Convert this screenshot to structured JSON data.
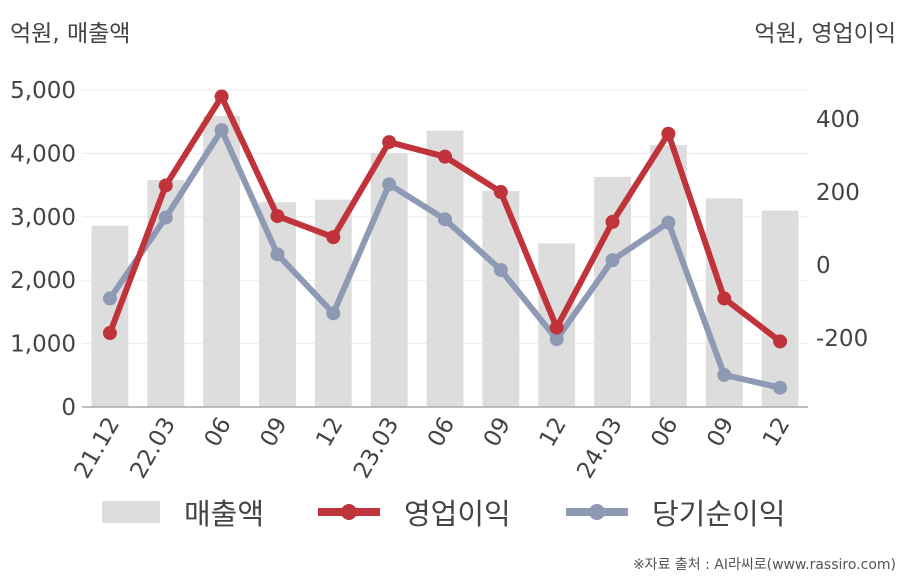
{
  "units": {
    "left": "억원, 매출액",
    "right": "억원, 영업이익"
  },
  "source": "※자료 출처 : AI라씨로(www.rassiro.com)",
  "colors": {
    "bar": "#dddddd",
    "operating": "#c0333a",
    "net": "#8e9ab4"
  },
  "chart_data": {
    "type": "bar",
    "categories": [
      "21.12",
      "22.03",
      "06",
      "09",
      "12",
      "23.03",
      "06",
      "09",
      "12",
      "24.03",
      "06",
      "09",
      "12"
    ],
    "y_left": {
      "ticks": [
        "0",
        "1,000",
        "2,000",
        "3,000",
        "4,000",
        "5,000"
      ],
      "ylim": [
        0,
        5000
      ]
    },
    "y_right": {
      "ticks": [
        "-200",
        "0",
        "200",
        "400"
      ],
      "ylim": [
        -390,
        480
      ]
    },
    "grid": true,
    "legend_position": "bottom",
    "series": [
      {
        "name": "매출액",
        "type": "bar",
        "axis": "left",
        "values": [
          2860,
          3580,
          4590,
          3230,
          3270,
          4000,
          4360,
          3410,
          2580,
          3630,
          4130,
          3290,
          3100
        ]
      },
      {
        "name": "영업이익",
        "type": "line",
        "axis": "right",
        "values": [
          -187,
          218,
          462,
          134,
          76,
          337,
          297,
          200,
          -172,
          118,
          360,
          -92,
          -210
        ]
      },
      {
        "name": "당기순이익",
        "type": "line",
        "axis": "right",
        "values": [
          -92,
          130,
          370,
          29,
          -133,
          221,
          125,
          -14,
          -204,
          13,
          116,
          -302,
          -337
        ]
      }
    ]
  }
}
